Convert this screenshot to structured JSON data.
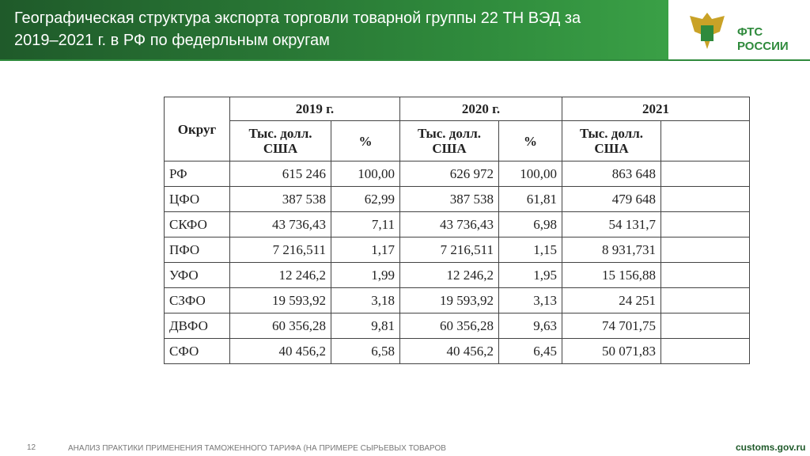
{
  "header": {
    "title_lines": [
      "Географическая структура экспорта торговли товарной группы 22 ТН ВЭД за",
      "2019–2021 г. в РФ по федерльным округам"
    ],
    "logo_lines": [
      "ФТС",
      "РОССИИ"
    ]
  },
  "table": {
    "header": [
      "Округ",
      "2019 г.",
      "2020 г.",
      "2021"
    ],
    "subheader": [
      "Тыс. долл. США",
      "%",
      "Тыс. долл. США",
      "%",
      "Тыс. долл. США"
    ],
    "rows": [
      [
        "РФ",
        "615 246",
        "100,00",
        "626 972",
        "100,00",
        "863 648"
      ],
      [
        "ЦФО",
        "387 538",
        "62,99",
        "387 538",
        "61,81",
        "479 648"
      ],
      [
        "СКФО",
        "43 736,43",
        "7,11",
        "43 736,43",
        "6,98",
        "54 131,7"
      ],
      [
        "ПФО",
        "7 216,511",
        "1,17",
        "7 216,511",
        "1,15",
        "8 931,731"
      ],
      [
        "УФО",
        "12 246,2",
        "1,99",
        "12 246,2",
        "1,95",
        "15 156,88"
      ],
      [
        "СЗФО",
        "19 593,92",
        "3,18",
        "19 593,92",
        "3,13",
        "24 251"
      ],
      [
        "ДВФО",
        "60 356,28",
        "9,81",
        "60 356,28",
        "9,63",
        "74 701,75"
      ],
      [
        "СФО",
        "40 456,2",
        "6,58",
        "40 456,2",
        "6,45",
        "50 071,83"
      ]
    ]
  },
  "footer": {
    "page": "12",
    "text": "АНАЛИЗ ПРАКТИКИ ПРИМЕНЕНИЯ ТАМОЖЕННОГО ТАРИФА (НА ПРИМЕРЕ СЫРЬЕВЫХ ТОВАРОВ",
    "site": "customs.gov.ru"
  }
}
